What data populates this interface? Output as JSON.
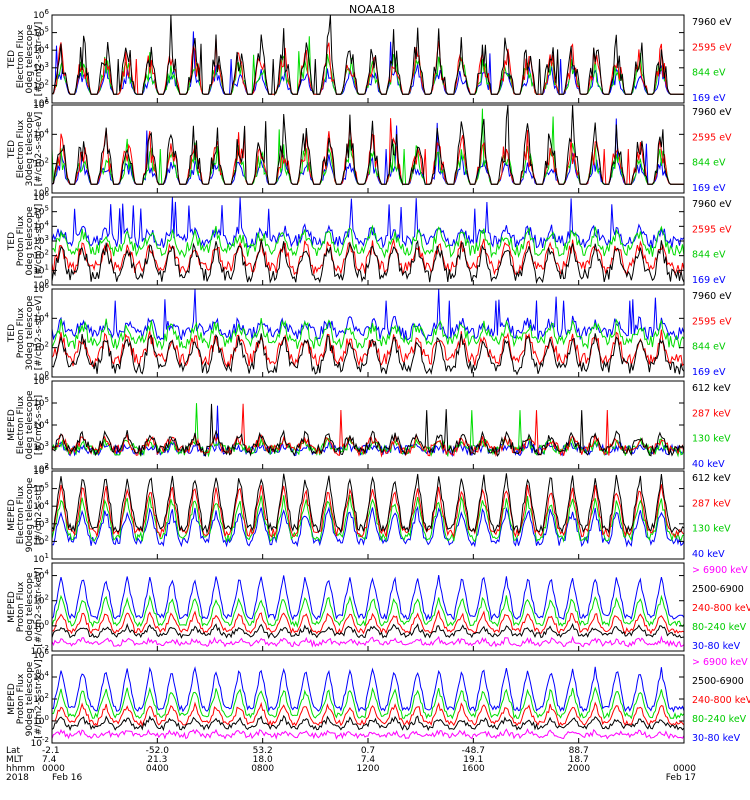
{
  "title": "NOAA18",
  "chart_data": [
    {
      "type": "line",
      "ylabel": [
        "TED",
        "Electron Flux",
        "0deg telescope",
        "[#/cm2-s-str-eV]"
      ],
      "ytick_exps": [
        1,
        2,
        3,
        4,
        5,
        6
      ],
      "ylim_log10": [
        1,
        6
      ],
      "series": [
        {
          "name": "7960 eV",
          "color": "#000000"
        },
        {
          "name": "2595 eV",
          "color": "#ff0000"
        },
        {
          "name": "844 eV",
          "color": "#00dd00"
        },
        {
          "name": "169 eV",
          "color": "#0000ff"
        }
      ]
    },
    {
      "type": "line",
      "ylabel": [
        "TED",
        "Electron Flux",
        "30deg telescope",
        "[#/cm2-s-str-eV]"
      ],
      "ytick_exps": [
        0,
        2,
        4,
        6
      ],
      "ylim_log10": [
        0,
        6
      ],
      "series": [
        {
          "name": "7960 eV",
          "color": "#000000"
        },
        {
          "name": "2595 eV",
          "color": "#ff0000"
        },
        {
          "name": "844 eV",
          "color": "#00dd00"
        },
        {
          "name": "169 eV",
          "color": "#0000ff"
        }
      ]
    },
    {
      "type": "line",
      "ylabel": [
        "TED",
        "Proton Flux",
        "0deg telescope",
        "[#/cm2-s-str-eV]"
      ],
      "ytick_exps": [
        0,
        1,
        2,
        3,
        4,
        5,
        6
      ],
      "ylim_log10": [
        0,
        6
      ],
      "series": [
        {
          "name": "7960 eV",
          "color": "#000000"
        },
        {
          "name": "2595 eV",
          "color": "#ff0000"
        },
        {
          "name": "844 eV",
          "color": "#00dd00"
        },
        {
          "name": "169 eV",
          "color": "#0000ff"
        }
      ]
    },
    {
      "type": "line",
      "ylabel": [
        "TED",
        "Proton Flux",
        "30deg telescope",
        "[#/cm2-s-str-eV]"
      ],
      "ytick_exps": [
        0,
        2,
        4,
        6
      ],
      "ylim_log10": [
        0,
        6
      ],
      "series": [
        {
          "name": "7960 eV",
          "color": "#000000"
        },
        {
          "name": "2595 eV",
          "color": "#ff0000"
        },
        {
          "name": "844 eV",
          "color": "#00dd00"
        },
        {
          "name": "169 eV",
          "color": "#0000ff"
        }
      ]
    },
    {
      "type": "line",
      "ylabel": [
        "MEPED",
        "Electron Flux",
        "0deg telescope",
        "[#/cm2-s-str]"
      ],
      "ytick_exps": [
        2,
        3,
        4,
        5,
        6
      ],
      "ylim_log10": [
        2,
        6
      ],
      "series": [
        {
          "name": "612 keV",
          "color": "#000000"
        },
        {
          "name": "287 keV",
          "color": "#ff0000"
        },
        {
          "name": "130 keV",
          "color": "#00dd00"
        },
        {
          "name": "40 keV",
          "color": "#0000ff"
        }
      ]
    },
    {
      "type": "line",
      "ylabel": [
        "MEPED",
        "Electron Flux",
        "90deg telescope",
        "[#/cm2-s-str]"
      ],
      "ytick_exps": [
        1,
        2,
        3,
        4,
        5,
        6
      ],
      "ylim_log10": [
        1,
        6
      ],
      "series": [
        {
          "name": "612 keV",
          "color": "#000000"
        },
        {
          "name": "287 keV",
          "color": "#ff0000"
        },
        {
          "name": "130 keV",
          "color": "#00dd00"
        },
        {
          "name": "40 keV",
          "color": "#0000ff"
        }
      ]
    },
    {
      "type": "line",
      "ylabel": [
        "MEPED",
        "Proton Flux",
        "0deg telescope",
        "[#/cm2-s-str-keV]"
      ],
      "ytick_exps": [
        -2,
        0,
        2,
        4
      ],
      "ylim_log10": [
        -2,
        5
      ],
      "series": [
        {
          "name": "> 6900 keV",
          "color": "#ff00ff"
        },
        {
          "name": "2500-6900",
          "color": "#000000"
        },
        {
          "name": "240-800 keV",
          "color": "#ff0000"
        },
        {
          "name": "80-240 keV",
          "color": "#00dd00"
        },
        {
          "name": "30-80 keV",
          "color": "#0000ff"
        }
      ]
    },
    {
      "type": "line",
      "ylabel": [
        "MEPED",
        "Proton Flux",
        "90deg telescope",
        "[#/cm2-s-str-keV]"
      ],
      "ytick_exps": [
        -2,
        0,
        2,
        4,
        6
      ],
      "ylim_log10": [
        -2,
        6
      ],
      "series": [
        {
          "name": "> 6900 keV",
          "color": "#ff00ff"
        },
        {
          "name": "2500-6900",
          "color": "#000000"
        },
        {
          "name": "240-800 keV",
          "color": "#ff0000"
        },
        {
          "name": "80-240 keV",
          "color": "#00dd00"
        },
        {
          "name": "30-80 keV",
          "color": "#0000ff"
        }
      ]
    }
  ],
  "x_axis": {
    "row_labels": [
      "Lat",
      "MLT",
      "hhmm",
      "2018"
    ],
    "ticks": [
      {
        "hour": 0,
        "lat": "-2.1",
        "mlt": "7.4",
        "hhmm": "0000",
        "date": "Feb 16"
      },
      {
        "hour": 4,
        "lat": "-52.0",
        "mlt": "21.3",
        "hhmm": "0400",
        "date": ""
      },
      {
        "hour": 8,
        "lat": "53.2",
        "mlt": "18.0",
        "hhmm": "0800",
        "date": ""
      },
      {
        "hour": 12,
        "lat": "0.7",
        "mlt": "7.4",
        "hhmm": "1200",
        "date": ""
      },
      {
        "hour": 16,
        "lat": "-48.7",
        "mlt": "19.1",
        "hhmm": "1600",
        "date": ""
      },
      {
        "hour": 20,
        "lat": "88.7",
        "mlt": "18.7",
        "hhmm": "2000",
        "date": ""
      },
      {
        "hour": 24,
        "lat": "",
        "mlt": "",
        "hhmm": "0000",
        "date": "Feb 17"
      }
    ]
  }
}
